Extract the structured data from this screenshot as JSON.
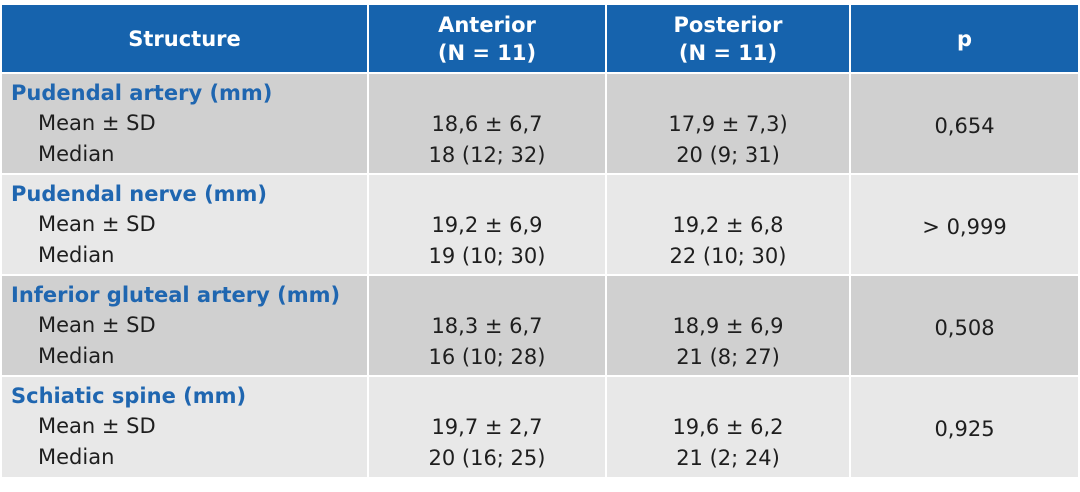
{
  "header": {
    "structure": "Structure",
    "anterior_line1": "Anterior",
    "anterior_line2": "(N = 11)",
    "posterior_line1": "Posterior",
    "posterior_line2": "(N = 11)",
    "p": "p"
  },
  "rows": [
    {
      "name": "Pudendal artery (mm)",
      "mean_label": "Mean ± SD",
      "median_label": "Median",
      "anterior_mean": "18,6 ± 6,7",
      "anterior_median": "18 (12; 32)",
      "posterior_mean": "17,9 ± 7,3)",
      "posterior_median": "20 (9; 31)",
      "p": "0,654"
    },
    {
      "name": "Pudendal nerve (mm)",
      "mean_label": "Mean ± SD",
      "median_label": "Median",
      "anterior_mean": "19,2 ± 6,9",
      "anterior_median": "19 (10; 30)",
      "posterior_mean": "19,2 ± 6,8",
      "posterior_median": "22 (10; 30)",
      "p": "> 0,999"
    },
    {
      "name": "Inferior gluteal artery (mm)",
      "mean_label": "Mean ± SD",
      "median_label": "Median",
      "anterior_mean": "18,3 ± 6,7",
      "anterior_median": "16 (10; 28)",
      "posterior_mean": "18,9 ± 6,9",
      "posterior_median": "21 (8; 27)",
      "p": "0,508"
    },
    {
      "name": "Schiatic spine (mm)",
      "mean_label": "Mean ± SD",
      "median_label": "Median",
      "anterior_mean": "19,7 ± 2,7",
      "anterior_median": "20 (16; 25)",
      "posterior_mean": "19,6 ± 6,2",
      "posterior_median": "21 (2; 24)",
      "p": "0,925"
    }
  ]
}
